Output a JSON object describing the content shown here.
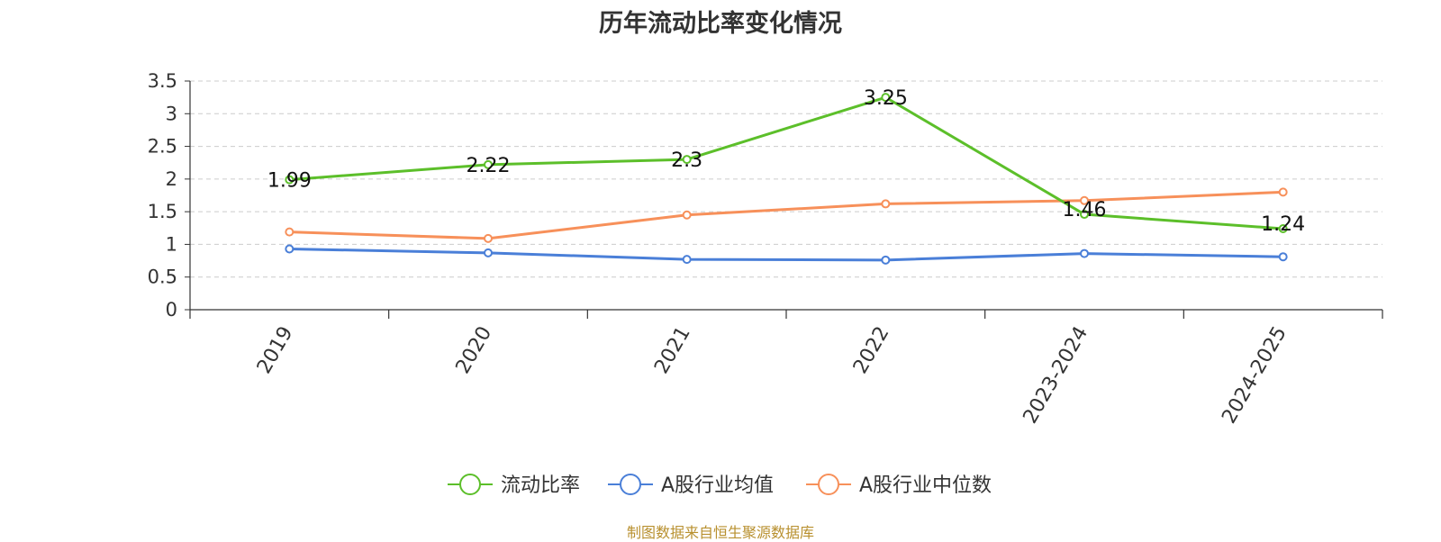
{
  "chart_data": {
    "type": "line",
    "title": "历年流动比率变化情况",
    "categories": [
      "2019",
      "2020",
      "2021",
      "2022",
      "2023-2024",
      "2024-2025"
    ],
    "ylim": [
      0,
      3.5
    ],
    "yticks": [
      "0",
      "0.5",
      "1",
      "1.5",
      "2",
      "2.5",
      "3",
      "3.5"
    ],
    "xlabel": "",
    "ylabel": "",
    "grid": true,
    "legend_position": "bottom-center",
    "series": [
      {
        "name": "流动比率",
        "color": "#5cbf2a",
        "values": [
          1.99,
          2.22,
          2.3,
          3.25,
          1.46,
          1.24
        ],
        "labels": [
          "1.99",
          "2.22",
          "2.3",
          "3.25",
          "1.46",
          "1.24"
        ]
      },
      {
        "name": "A股行业均值",
        "color": "#4a7fd8",
        "values": [
          0.93,
          0.87,
          0.77,
          0.76,
          0.86,
          0.81
        ]
      },
      {
        "name": "A股行业中位数",
        "color": "#f7905a",
        "values": [
          1.19,
          1.09,
          1.45,
          1.62,
          1.67,
          1.8
        ]
      }
    ],
    "source": "制图数据来自恒生聚源数据库"
  }
}
